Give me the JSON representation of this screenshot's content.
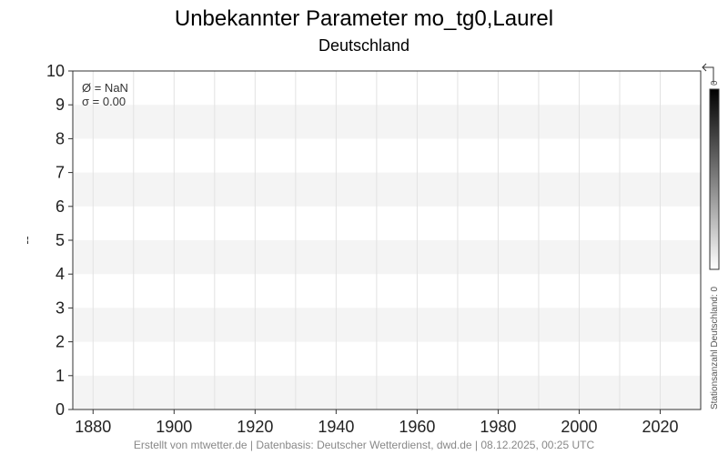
{
  "chart_data": {
    "type": "line",
    "title": "Unbekannter Parameter mo_tg0,Laurel",
    "subtitle": "Deutschland",
    "ylabel": "--",
    "xlim": [
      1875,
      2030
    ],
    "ylim": [
      0,
      10
    ],
    "xticks": [
      1880,
      1900,
      1920,
      1940,
      1960,
      1980,
      2000,
      2020
    ],
    "yticks": [
      0,
      1,
      2,
      3,
      4,
      5,
      6,
      7,
      8,
      9,
      10
    ],
    "grid": true,
    "series": [],
    "stats": {
      "mean": "Ø = NaN",
      "sigma": "σ = 0.00"
    },
    "colorbar": {
      "label": "Stationsanzahl Deutschland: 0",
      "max_label": "0",
      "colors": [
        "#ffffff",
        "#000000"
      ]
    },
    "footer": "Erstellt von mtwetter.de | Datenbasis: Deutscher Wetterdienst, dwd.de | 08.12.2025, 00:25 UTC"
  }
}
